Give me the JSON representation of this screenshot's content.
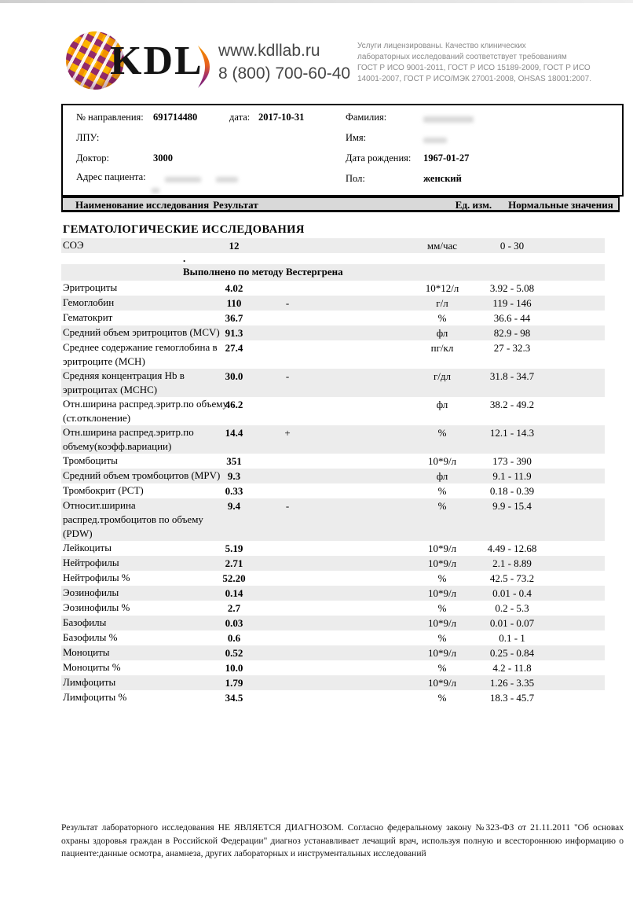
{
  "header": {
    "logo_text": "KDL",
    "website": "www.kdllab.ru",
    "phone": "8 (800) 700-60-40",
    "certification_lines": [
      "Услуги лицензированы. Качество клинических",
      "лабораторных исследований соответствует требованиям",
      "ГОСТ Р ИСО 9001-2011, ГОСТ Р ИСО 15189-2009, ГОСТ Р ИСО",
      "14001-2007, ГОСТ Р ИСО/МЭК 27001-2008, OHSAS 18001:2007."
    ]
  },
  "patient_box": {
    "referral_label": "№ направления:",
    "referral_value": "691714480",
    "date_label": "дата:",
    "date_value": "2017-10-31",
    "lpu_label": "ЛПУ:",
    "lpu_value": "",
    "doctor_label": "Доктор:",
    "doctor_value": "3000",
    "address_label": "Адрес пациента:",
    "address_value": "",
    "surname_label": "Фамилия:",
    "surname_value": "",
    "firstname_label": "Имя:",
    "firstname_value": "",
    "birthdate_label": "Дата рождения:",
    "birthdate_value": "1967-01-27",
    "sex_label": "Пол:",
    "sex_value": "женский"
  },
  "table": {
    "headers": {
      "name": "Наименование исследования",
      "result": "Результат",
      "unit": "Ед. изм.",
      "range": "Нормальные значения"
    },
    "section_title": "ГЕМАТОЛОГИЧЕСКИЕ ИССЛЕДОВАНИЯ",
    "rows": [
      {
        "name": "СОЭ",
        "result": "12",
        "flag": "",
        "unit": "мм/час",
        "range": "0 - 30"
      },
      {
        "type": "comment",
        "text": "."
      },
      {
        "type": "method",
        "text": "Выполнено по методу Вестергрена"
      },
      {
        "name": "Эритроциты",
        "result": "4.02",
        "flag": "",
        "unit": "10*12/л",
        "range": "3.92 - 5.08"
      },
      {
        "name": "Гемоглобин",
        "result": "110",
        "flag": "-",
        "unit": "г/л",
        "range": "119 - 146"
      },
      {
        "name": "Гематокрит",
        "result": "36.7",
        "flag": "",
        "unit": "%",
        "range": "36.6 - 44"
      },
      {
        "name": "Средний объем эритроцитов (MCV)",
        "result": "91.3",
        "flag": "",
        "unit": "фл",
        "range": "82.9 - 98"
      },
      {
        "name": "Среднее содержание гемоглобина в эритроците (MCH)",
        "result": "27.4",
        "flag": "",
        "unit": "пг/кл",
        "range": "27 - 32.3"
      },
      {
        "name": "Средняя концентрация Hb в эритроцитах (MCHC)",
        "result": "30.0",
        "flag": "-",
        "unit": "г/дл",
        "range": "31.8 - 34.7"
      },
      {
        "name": "Отн.ширина распред.эритр.по объему (ст.отклонение)",
        "result": "46.2",
        "flag": "",
        "unit": "фл",
        "range": "38.2 - 49.2"
      },
      {
        "name": "Отн.ширина распред.эритр.по объему(коэфф.вариации)",
        "result": "14.4",
        "flag": "+",
        "unit": "%",
        "range": "12.1 - 14.3"
      },
      {
        "name": "Тромбоциты",
        "result": "351",
        "flag": "",
        "unit": "10*9/л",
        "range": "173 - 390"
      },
      {
        "name": "Средний объем тромбоцитов (MPV)",
        "result": "9.3",
        "flag": "",
        "unit": "фл",
        "range": "9.1 - 11.9"
      },
      {
        "name": "Тромбокрит (PCT)",
        "result": "0.33",
        "flag": "",
        "unit": "%",
        "range": "0.18 - 0.39"
      },
      {
        "name": "Относит.ширина распред.тромбоцитов по объему (PDW)",
        "result": "9.4",
        "flag": "-",
        "unit": "%",
        "range": "9.9 - 15.4"
      },
      {
        "name": "Лейкоциты",
        "result": "5.19",
        "flag": "",
        "unit": "10*9/л",
        "range": "4.49 - 12.68"
      },
      {
        "name": "Нейтрофилы",
        "result": "2.71",
        "flag": "",
        "unit": "10*9/л",
        "range": "2.1 - 8.89"
      },
      {
        "name": "Нейтрофилы %",
        "result": "52.20",
        "flag": "",
        "unit": "%",
        "range": "42.5 - 73.2"
      },
      {
        "name": "Эозинофилы",
        "result": "0.14",
        "flag": "",
        "unit": "10*9/л",
        "range": "0.01 - 0.4"
      },
      {
        "name": "Эозинофилы %",
        "result": "2.7",
        "flag": "",
        "unit": "%",
        "range": "0.2 - 5.3"
      },
      {
        "name": "Базофилы",
        "result": "0.03",
        "flag": "",
        "unit": "10*9/л",
        "range": "0.01 - 0.07"
      },
      {
        "name": "Базофилы %",
        "result": "0.6",
        "flag": "",
        "unit": "%",
        "range": "0.1 - 1"
      },
      {
        "name": "Моноциты",
        "result": "0.52",
        "flag": "",
        "unit": "10*9/л",
        "range": "0.25 - 0.84"
      },
      {
        "name": "Моноциты %",
        "result": "10.0",
        "flag": "",
        "unit": "%",
        "range": "4.2 - 11.8"
      },
      {
        "name": "Лимфоциты",
        "result": "1.79",
        "flag": "",
        "unit": "10*9/л",
        "range": "1.26 - 3.35"
      },
      {
        "name": "Лимфоциты %",
        "result": "34.5",
        "flag": "",
        "unit": "%",
        "range": "18.3 - 45.7"
      }
    ]
  },
  "footer": {
    "disclaimer": "Результат лабораторного исследования НЕ ЯВЛЯЕТСЯ ДИАГНОЗОМ. Согласно федеральному закону №323-ФЗ от 21.11.2011 \"Об основах охраны здоровья граждан в Российской Федерации\" диагноз устанавливает лечащий врач, используя полную и всестороннюю информацию о пациенте:данные осмотра, анамнеза, других лабораторных и инструментальных исследований"
  },
  "colors": {
    "row_shade": "#ececec",
    "header_bar": "#d9d9d9",
    "logo_orange": "#f39200",
    "logo_purple": "#8e2470",
    "cert_text": "#8a8a8a",
    "contact_text": "#454545"
  }
}
